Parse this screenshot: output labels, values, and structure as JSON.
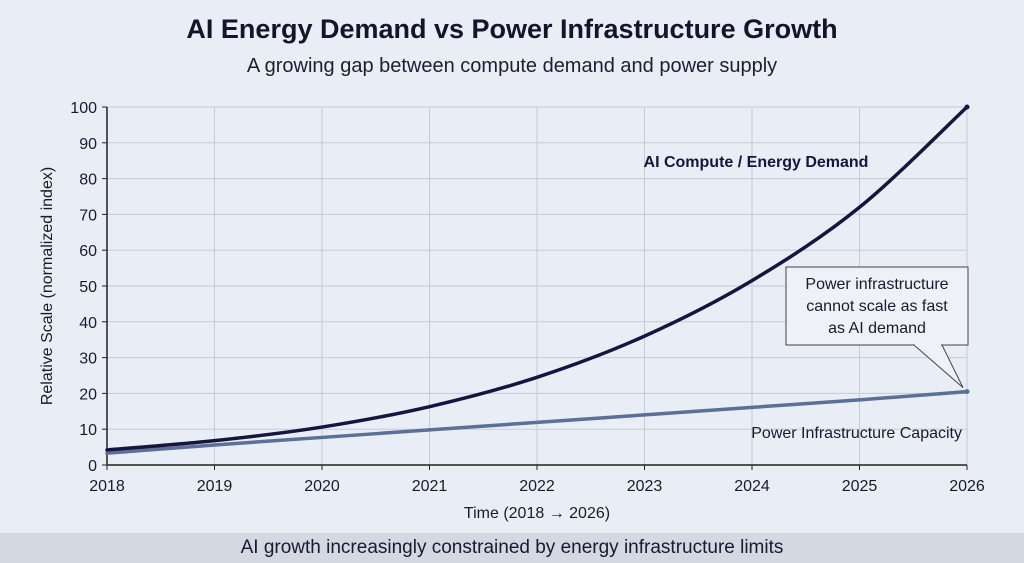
{
  "title": "AI Energy Demand vs Power Infrastructure Growth",
  "subtitle": "A growing gap between compute demand and power supply",
  "footer": "AI growth increasingly constrained by energy infrastructure limits",
  "colors": {
    "demand": "#15153d",
    "capacity": "#5d6f96",
    "grid": "#c5ccd8",
    "background": "#e8edf6"
  },
  "chart_data": {
    "type": "line",
    "xlabel": "Time (2018 → 2026)",
    "ylabel": "Relative Scale (normalized index)",
    "xlim": [
      2018,
      2026
    ],
    "ylim": [
      0,
      100
    ],
    "x_ticks": [
      2018,
      2019,
      2020,
      2021,
      2022,
      2023,
      2024,
      2025,
      2026
    ],
    "y_ticks": [
      0,
      10,
      20,
      30,
      40,
      50,
      60,
      70,
      80,
      90,
      100
    ],
    "grid": true,
    "series": [
      {
        "name": "AI Compute / Energy Demand",
        "x": [
          2018,
          2019,
          2020,
          2021,
          2022,
          2023,
          2024,
          2025,
          2026
        ],
        "y": [
          4.2,
          6.8,
          10.6,
          16.3,
          24.5,
          36,
          51.5,
          72,
          100
        ]
      },
      {
        "name": "Power Infrastructure Capacity",
        "x": [
          2018,
          2019,
          2020,
          2021,
          2022,
          2023,
          2024,
          2025,
          2026
        ],
        "y": [
          3.3,
          5.6,
          7.7,
          9.8,
          11.9,
          14,
          16.1,
          18.2,
          20.5
        ]
      }
    ],
    "annotation": {
      "text_lines": [
        "Power infrastructure",
        "cannot scale as fast",
        "as AI demand"
      ],
      "points_to": [
        2026,
        20.5
      ]
    }
  }
}
